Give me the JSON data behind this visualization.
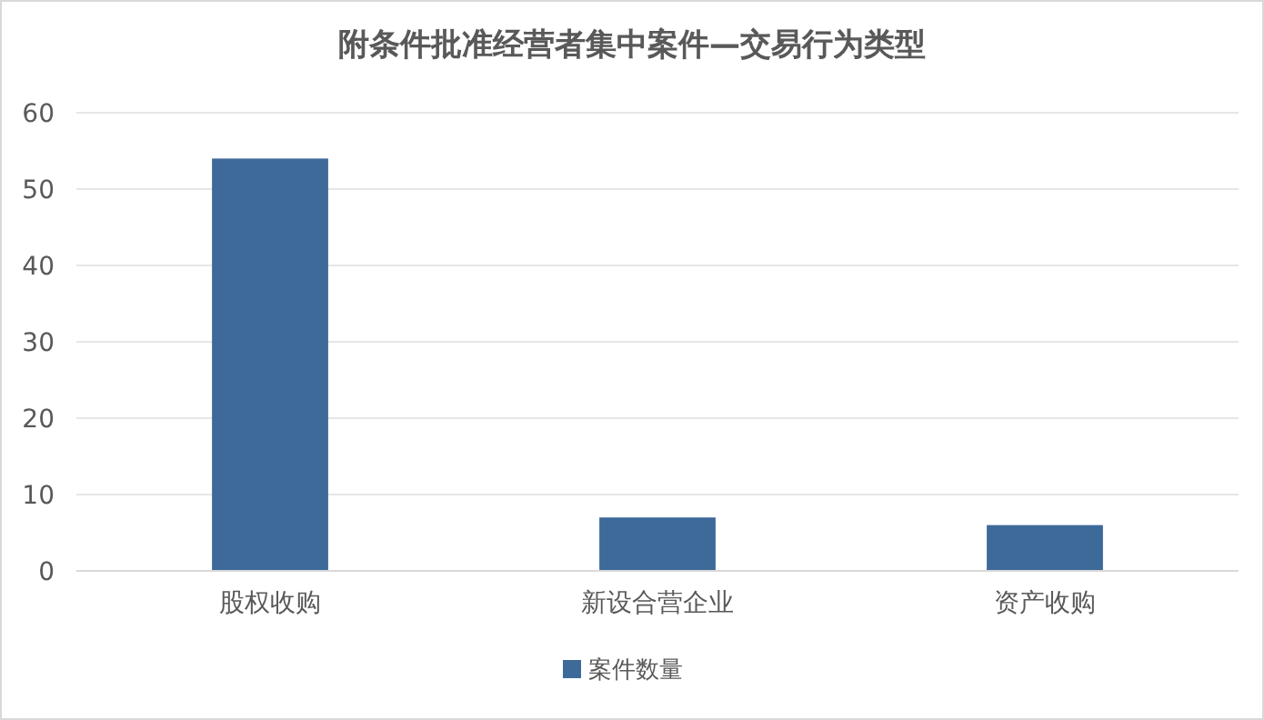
{
  "chart_data": {
    "type": "bar",
    "title": "附条件批准经营者集中案件—交易行为类型",
    "categories": [
      "股权收购",
      "新设合营企业",
      "资产收购"
    ],
    "series": [
      {
        "name": "案件数量",
        "color": "#3e6a9a",
        "values": [
          54,
          7,
          6
        ]
      }
    ],
    "ylim": [
      0,
      60
    ],
    "yticks": [
      0,
      10,
      20,
      30,
      40,
      50,
      60
    ],
    "grid": "y",
    "legend": "bottom"
  }
}
